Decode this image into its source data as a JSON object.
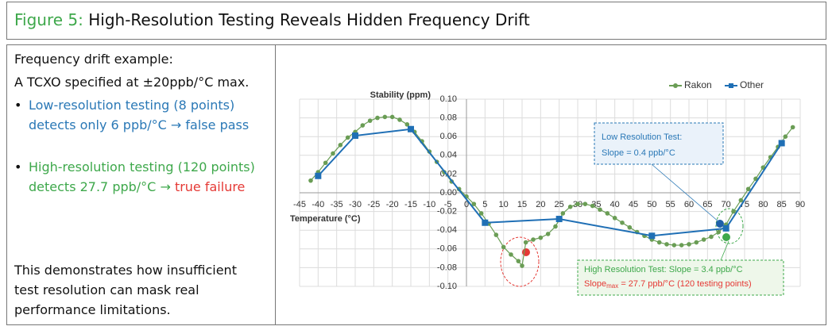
{
  "header": {
    "figure_label": "Figure 5:",
    "title": "High-Resolution Testing Reveals Hidden Frequency Drift"
  },
  "left_panel": {
    "intro": "Frequency drift example:",
    "spec": "A TCXO specified at ±20ppb/°C max.",
    "bullets": [
      {
        "text": "Low-resolution testing (8 points) detects only 6 ppb/°C → false pass"
      },
      {
        "text": "High-resolution testing (120 points) detects 27.7 ppb/°C → ",
        "highlight": "true failure"
      }
    ],
    "conclusion": "This demonstrates how insufficient test resolution can mask real performance limitations."
  },
  "chart_data": {
    "type": "line",
    "ylabel": "Stability (ppm)",
    "xlabel": "Temperature (°C)",
    "xlim": [
      -45,
      90
    ],
    "xticks": [
      -45,
      -40,
      -35,
      -30,
      -25,
      -20,
      -15,
      -10,
      -5,
      0,
      5,
      10,
      15,
      20,
      25,
      30,
      35,
      40,
      45,
      50,
      55,
      60,
      65,
      70,
      75,
      80,
      85,
      90
    ],
    "ylim": [
      -0.1,
      0.1
    ],
    "yticks": [
      {
        "value": 0.1,
        "label": "0.10"
      },
      0.08,
      0.06,
      0.04,
      0.02,
      {
        "value": 0,
        "label": "0.00"
      },
      -0.02,
      -0.04,
      -0.06,
      -0.08,
      {
        "value": -0.1,
        "label": "-0.10"
      }
    ],
    "grid": true,
    "legend": "top-right",
    "series": [
      {
        "name": "Rakon",
        "color": "#6a9d55",
        "marker": "circle",
        "x": [
          -42,
          -40,
          -38,
          -36,
          -34,
          -32,
          -30,
          -28,
          -26,
          -24,
          -22,
          -20,
          -18,
          -16,
          -14,
          -12,
          -10,
          -8,
          -6,
          -4,
          -2,
          0,
          2,
          4,
          6,
          8,
          10,
          12,
          14,
          15,
          16,
          18,
          20,
          22,
          24,
          26,
          28,
          30,
          32,
          34,
          36,
          38,
          40,
          42,
          44,
          46,
          48,
          50,
          52,
          54,
          56,
          58,
          60,
          62,
          64,
          66,
          68,
          70,
          72,
          74,
          76,
          78,
          80,
          82,
          84,
          86,
          88
        ],
        "values": [
          0.013,
          0.022,
          0.032,
          0.042,
          0.051,
          0.059,
          0.065,
          0.072,
          0.077,
          0.08,
          0.081,
          0.081,
          0.078,
          0.073,
          0.065,
          0.055,
          0.044,
          0.033,
          0.022,
          0.012,
          0.004,
          -0.004,
          -0.012,
          -0.022,
          -0.033,
          -0.045,
          -0.058,
          -0.066,
          -0.073,
          -0.078,
          -0.053,
          -0.05,
          -0.048,
          -0.044,
          -0.036,
          -0.022,
          -0.015,
          -0.012,
          -0.012,
          -0.014,
          -0.018,
          -0.022,
          -0.027,
          -0.032,
          -0.037,
          -0.042,
          -0.046,
          -0.05,
          -0.053,
          -0.055,
          -0.056,
          -0.056,
          -0.055,
          -0.053,
          -0.05,
          -0.047,
          -0.042,
          -0.034,
          -0.02,
          -0.008,
          0.004,
          0.015,
          0.027,
          0.038,
          0.049,
          0.06,
          0.07
        ]
      },
      {
        "name": "Other",
        "color": "#1f6fb5",
        "marker": "square",
        "x": [
          -40,
          -30,
          -15,
          5,
          25,
          50,
          70,
          85
        ],
        "values": [
          0.018,
          0.061,
          0.068,
          -0.032,
          -0.028,
          -0.046,
          -0.038,
          0.053
        ]
      }
    ],
    "annotations": [
      {
        "lines": [
          "Low Resolution Test:",
          "Slope = 0.4 ppb/°C"
        ]
      },
      {
        "lines": [
          "High Resolution Test: Slope = 3.4 ppb/°C"
        ],
        "slope_max": {
          "base": "Slope",
          "sub": "max",
          "rest": " = 27.7 ppb/°C (120 testing points)"
        }
      }
    ]
  }
}
